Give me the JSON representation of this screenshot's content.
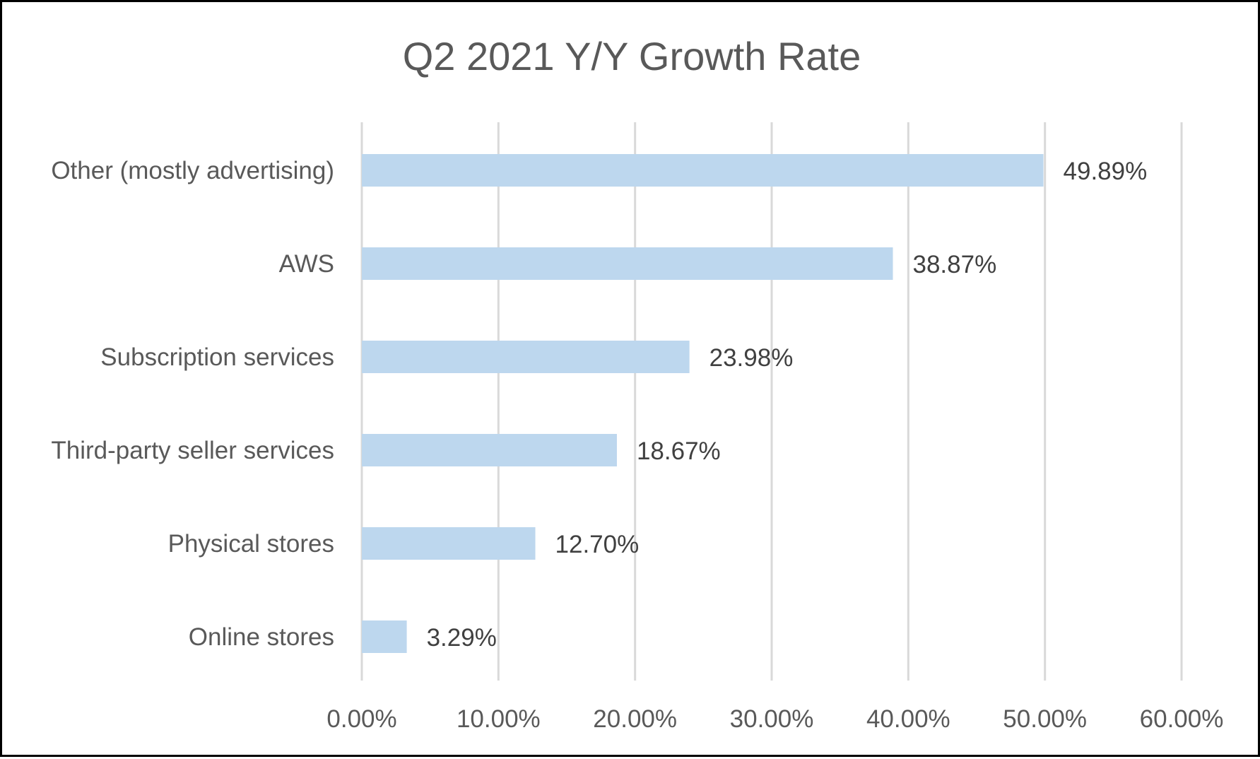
{
  "chart_data": {
    "type": "bar",
    "orientation": "horizontal",
    "title": "Q2 2021 Y/Y Growth Rate",
    "xlabel": "",
    "ylabel": "",
    "categories": [
      "Other (mostly advertising)",
      "AWS",
      "Subscription services",
      "Third-party seller services",
      "Physical stores",
      "Online stores"
    ],
    "values": [
      49.89,
      38.87,
      23.98,
      18.67,
      12.7,
      3.29
    ],
    "data_labels": [
      "49.89%",
      "38.87%",
      "23.98%",
      "18.67%",
      "12.70%",
      "3.29%"
    ],
    "xlim": [
      0,
      60
    ],
    "x_ticks": [
      0,
      10,
      20,
      30,
      40,
      50,
      60
    ],
    "x_tick_labels": [
      "0.00%",
      "10.00%",
      "20.00%",
      "30.00%",
      "40.00%",
      "50.00%",
      "60.00%"
    ],
    "grid": "vertical",
    "legend": "none",
    "colors": {
      "bar": "#bdd7ee",
      "grid": "#d9d9d9",
      "text": "#595959",
      "data_label": "#404040",
      "border": "#000000"
    }
  }
}
